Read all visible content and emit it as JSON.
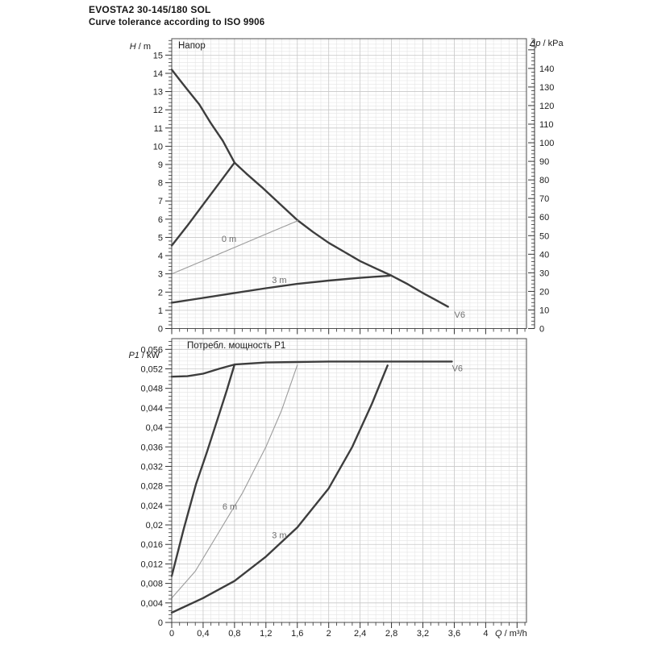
{
  "header": {
    "model": "EVOSTA2 30-145/180 SOL",
    "tolerance": "Curve tolerance according to ISO 9906"
  },
  "colors": {
    "dark": "#3d3d3d",
    "light": "#9b9b9b",
    "grid_minor": "#e4e4e4",
    "grid_major": "#c8c8c8",
    "frame": "#4d4d4d",
    "tick": "#333333",
    "text": "#1c1c1c",
    "gray": "#6f6f6f"
  },
  "chart_data": [
    {
      "type": "line",
      "title": "Напор",
      "x_axis": {
        "label": "Q / m³/h",
        "min": 0,
        "max": 4.52,
        "major_step": 0.4,
        "minor_step": 0.1,
        "labels_visible": false,
        "tick_labels": [
          "0",
          "0,4",
          "0,8",
          "1,2",
          "1,6",
          "2",
          "2,4",
          "2,8",
          "3,2",
          "3,6",
          "4"
        ]
      },
      "y_axis": {
        "label": "H / m",
        "min": 0,
        "max": 15.9,
        "major_step": 1,
        "minor_step": 0.2,
        "tick_labels": [
          "0",
          "1",
          "2",
          "3",
          "4",
          "5",
          "6",
          "7",
          "8",
          "9",
          "10",
          "11",
          "12",
          "13",
          "14",
          "15"
        ]
      },
      "y2_axis": {
        "label": "Δp / kPa",
        "min": 0,
        "max": 156,
        "major_step": 10,
        "minor_step": 2,
        "tick_labels": [
          "0",
          "10",
          "20",
          "30",
          "40",
          "50",
          "60",
          "70",
          "80",
          "90",
          "100",
          "110",
          "120",
          "130",
          "140"
        ]
      },
      "series": [
        {
          "name": "max-speed-curve",
          "color": "dark",
          "width": 2.4,
          "points": [
            [
              0,
              14.2
            ],
            [
              0.1,
              13.65
            ],
            [
              0.2,
              13.1
            ],
            [
              0.35,
              12.3
            ],
            [
              0.5,
              11.25
            ],
            [
              0.65,
              10.3
            ],
            [
              0.8,
              9.1
            ],
            [
              0.95,
              8.5
            ],
            [
              1.15,
              7.75
            ],
            [
              1.35,
              6.95
            ],
            [
              1.6,
              5.95
            ],
            [
              1.8,
              5.3
            ],
            [
              2.0,
              4.7
            ],
            [
              2.2,
              4.2
            ],
            [
              2.4,
              3.7
            ],
            [
              2.6,
              3.3
            ],
            [
              2.8,
              2.9
            ],
            [
              3.0,
              2.45
            ],
            [
              3.2,
              1.95
            ],
            [
              3.35,
              1.6
            ],
            [
              3.52,
              1.2
            ]
          ]
        },
        {
          "name": "proportional-max-curve",
          "color": "dark",
          "width": 2.4,
          "points": [
            [
              0,
              4.55
            ],
            [
              0.2,
              5.65
            ],
            [
              0.4,
              6.8
            ],
            [
              0.6,
              7.95
            ],
            [
              0.8,
              9.1
            ]
          ]
        },
        {
          "name": "setting-0m-curve",
          "color": "light",
          "width": 1.1,
          "points": [
            [
              0,
              3.0
            ],
            [
              0.4,
              3.72
            ],
            [
              0.8,
              4.45
            ],
            [
              1.2,
              5.18
            ],
            [
              1.61,
              5.92
            ]
          ]
        },
        {
          "name": "setting-3m-curve",
          "color": "dark",
          "width": 2.4,
          "points": [
            [
              0,
              1.42
            ],
            [
              0.4,
              1.68
            ],
            [
              0.8,
              1.95
            ],
            [
              1.2,
              2.21
            ],
            [
              1.6,
              2.45
            ],
            [
              2.0,
              2.63
            ],
            [
              2.4,
              2.78
            ],
            [
              2.78,
              2.9
            ]
          ]
        }
      ],
      "annotations": [
        {
          "text": "0 m",
          "x": 0.73,
          "y": 4.93,
          "color": "gray"
        },
        {
          "text": "3 m",
          "x": 1.37,
          "y": 2.68,
          "color": "gray"
        },
        {
          "text": "V6",
          "x": 3.67,
          "y": 0.77,
          "color": "gray"
        }
      ]
    },
    {
      "type": "line",
      "title": "Потребл. мощность P1",
      "x_axis": {
        "label": "Q / m³/h",
        "min": 0,
        "max": 4.52,
        "major_step": 0.4,
        "minor_step": 0.1,
        "labels_visible": true,
        "tick_labels": [
          "0",
          "0,4",
          "0,8",
          "1,2",
          "1,6",
          "2",
          "2,4",
          "2,8",
          "3,2",
          "3,6",
          "4"
        ]
      },
      "y_axis": {
        "label": "P1 / kW",
        "min": 0,
        "max": 0.0582,
        "major_step": 0.004,
        "minor_step": 0.0008,
        "tick_labels": [
          "0",
          "0,004",
          "0,008",
          "0,012",
          "0,016",
          "0,02",
          "0,024",
          "0,028",
          "0,032",
          "0,036",
          "0,04",
          "0,044",
          "0,048",
          "0,052",
          "0,056"
        ]
      },
      "series": [
        {
          "name": "v6-max-power-curve",
          "color": "dark",
          "width": 2.4,
          "points": [
            [
              0,
              0.0504
            ],
            [
              0.2,
              0.0505
            ],
            [
              0.4,
              0.051
            ],
            [
              0.6,
              0.052
            ],
            [
              0.8,
              0.0529
            ],
            [
              1.2,
              0.0533
            ],
            [
              1.6,
              0.0534
            ],
            [
              2.0,
              0.0535
            ],
            [
              2.8,
              0.0535
            ],
            [
              3.57,
              0.0535
            ]
          ]
        },
        {
          "name": "proportional-max-power-curve",
          "color": "dark",
          "width": 2.4,
          "points": [
            [
              0,
              0.0095
            ],
            [
              0.15,
              0.019
            ],
            [
              0.31,
              0.0284
            ],
            [
              0.45,
              0.035
            ],
            [
              0.6,
              0.0425
            ],
            [
              0.7,
              0.0475
            ],
            [
              0.8,
              0.0529
            ]
          ]
        },
        {
          "name": "setting-6m-power-curve",
          "color": "light",
          "width": 1.1,
          "points": [
            [
              0,
              0.005
            ],
            [
              0.3,
              0.0105
            ],
            [
              0.6,
              0.0185
            ],
            [
              0.9,
              0.0265
            ],
            [
              1.2,
              0.036
            ],
            [
              1.4,
              0.0435
            ],
            [
              1.6,
              0.0528
            ]
          ]
        },
        {
          "name": "setting-3m-power-curve",
          "color": "dark",
          "width": 2.4,
          "points": [
            [
              0,
              0.002
            ],
            [
              0.4,
              0.005
            ],
            [
              0.8,
              0.0085
            ],
            [
              1.2,
              0.0135
            ],
            [
              1.6,
              0.0195
            ],
            [
              2.0,
              0.0275
            ],
            [
              2.3,
              0.036
            ],
            [
              2.55,
              0.0448
            ],
            [
              2.75,
              0.0527
            ]
          ]
        }
      ],
      "annotations": [
        {
          "text": "6 m",
          "x": 0.74,
          "y": 0.0238,
          "color": "gray"
        },
        {
          "text": "3 m",
          "x": 1.37,
          "y": 0.0179,
          "color": "gray"
        },
        {
          "text": "V6",
          "x": 3.64,
          "y": 0.0522,
          "color": "gray"
        }
      ]
    }
  ]
}
